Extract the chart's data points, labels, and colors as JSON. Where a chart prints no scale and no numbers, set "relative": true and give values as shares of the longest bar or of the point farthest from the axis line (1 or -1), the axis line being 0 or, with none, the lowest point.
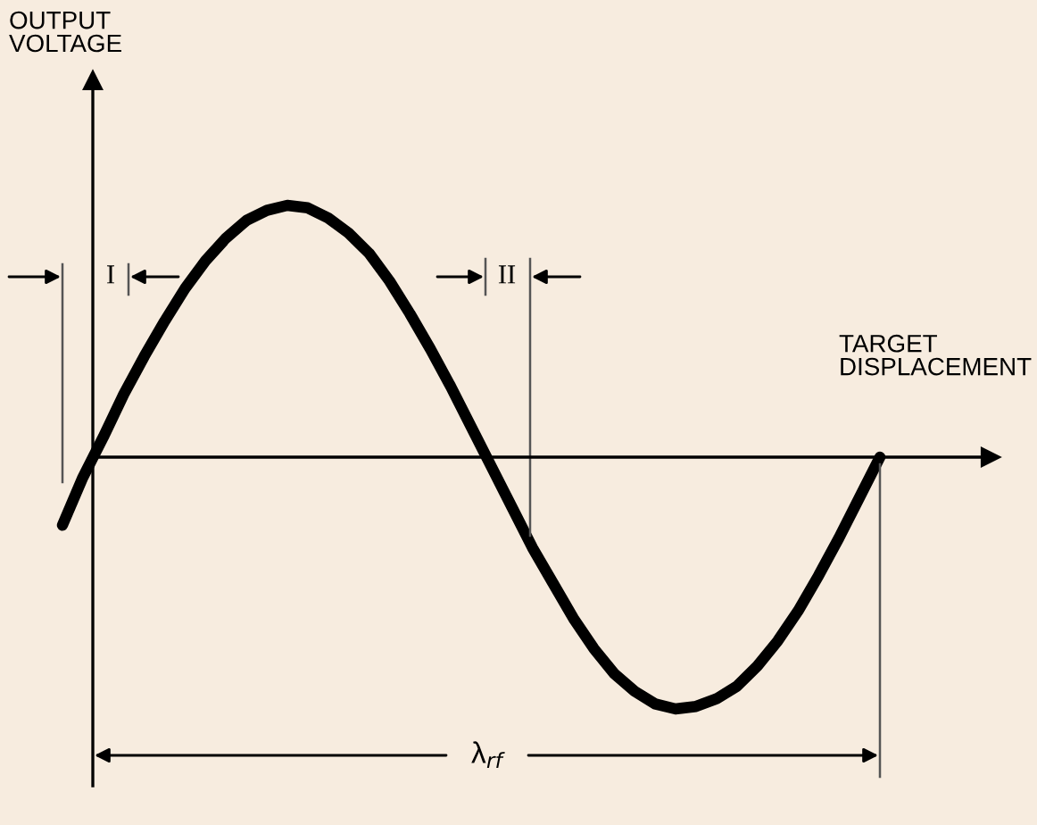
{
  "chart_data": {
    "type": "line",
    "relative": true,
    "xlabel": "TARGET\nDISPLACEMENT",
    "categories": [
      null,
      null,
      null,
      null,
      null,
      null,
      null,
      null,
      null,
      null,
      null,
      null,
      null,
      null,
      null,
      null,
      null,
      null,
      null,
      null,
      null,
      null,
      null,
      null,
      null,
      null,
      null,
      null,
      null,
      null,
      null,
      null,
      null,
      null,
      null,
      null,
      null,
      null,
      null,
      null,
      null
    ],
    "series": [
      {
        "color": "#000000",
        "values": [
          -0.27,
          -0.08,
          0.08,
          0.25,
          0.4,
          0.54,
          0.67,
          0.78,
          0.87,
          0.94,
          0.98,
          1.0,
          0.99,
          0.95,
          0.89,
          0.81,
          0.7,
          0.57,
          0.43,
          0.28,
          0.12,
          -0.04,
          -0.2,
          -0.36,
          -0.5,
          -0.64,
          -0.76,
          -0.86,
          -0.93,
          -0.98,
          -1.0,
          -0.99,
          -0.96,
          -0.91,
          -0.83,
          -0.73,
          -0.61,
          -0.47,
          -0.32,
          -0.16,
          0.0
        ]
      }
    ],
    "annotations": [
      "OUTPUT\nVOLTAGE",
      "I",
      "II",
      "λ$_{rf}$"
    ],
    "legend": false,
    "marker": "none",
    "line_style": "solid"
  }
}
